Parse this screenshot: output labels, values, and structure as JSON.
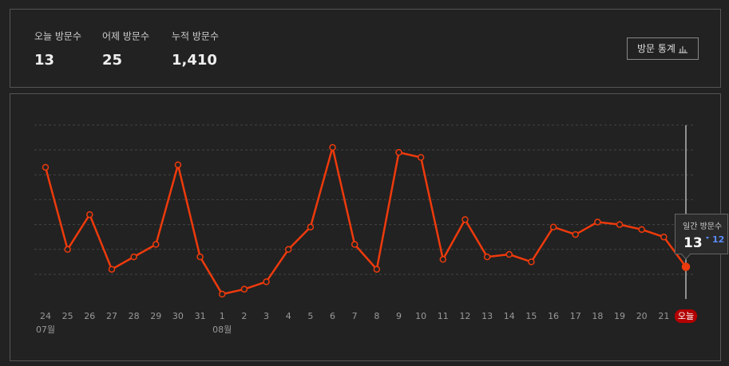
{
  "stats": [
    {
      "label": "오늘 방문수",
      "value": "13"
    },
    {
      "label": "어제 방문수",
      "value": "25"
    },
    {
      "label": "누적 방문수",
      "value": "1,410"
    }
  ],
  "button": "방문 통계",
  "chart_data": {
    "type": "line",
    "categories": [
      "24",
      "25",
      "26",
      "27",
      "28",
      "29",
      "30",
      "31",
      "1",
      "2",
      "3",
      "4",
      "5",
      "6",
      "7",
      "8",
      "9",
      "10",
      "11",
      "12",
      "13",
      "14",
      "15",
      "16",
      "17",
      "18",
      "19",
      "20",
      "21",
      "오늘"
    ],
    "sublabels": [
      "07월",
      null,
      null,
      null,
      null,
      null,
      null,
      null,
      "08월",
      null,
      null,
      null,
      null,
      null,
      null,
      null,
      null,
      null,
      null,
      null,
      null,
      null,
      null,
      null,
      null,
      null,
      null,
      null,
      null,
      null
    ],
    "series": [
      {
        "name": "일간 방문수",
        "color": "#ee3a0c",
        "values": [
          53,
          20,
          34,
          12,
          17,
          22,
          54,
          17,
          2,
          4,
          7,
          20,
          29,
          61,
          22,
          12,
          59,
          57,
          16,
          32,
          17,
          18,
          15,
          29,
          26,
          31,
          30,
          28,
          25,
          13
        ]
      }
    ],
    "ylim": [
      -2,
      72
    ],
    "yticks": [
      10,
      20,
      30,
      40,
      50,
      60,
      70
    ],
    "grid": true,
    "tooltip": {
      "title": "일간 방문수",
      "change": 12
    }
  }
}
